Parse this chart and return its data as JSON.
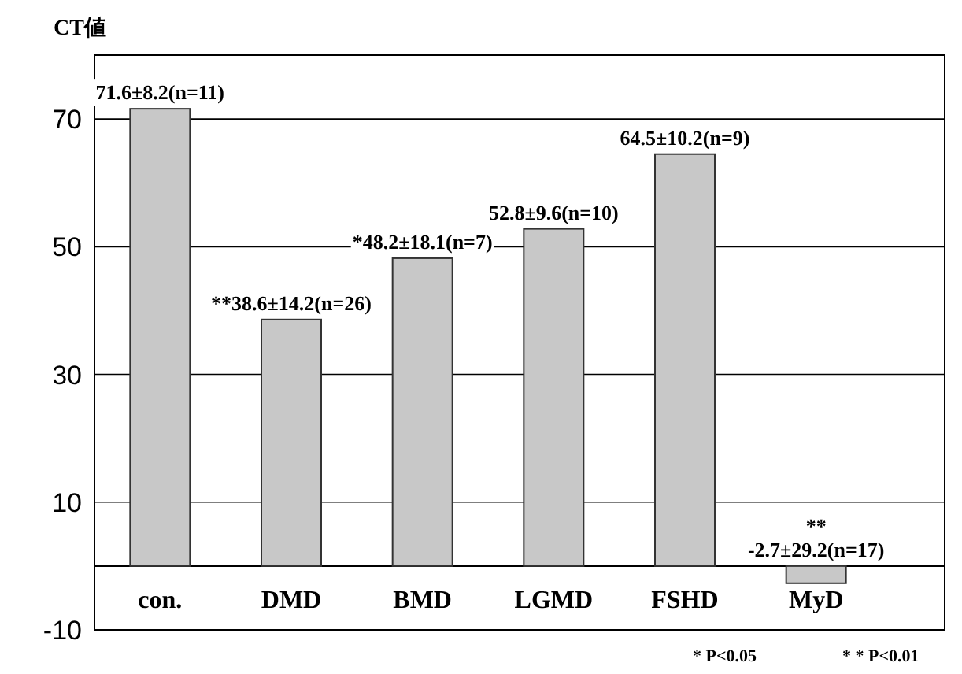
{
  "chart_data": {
    "type": "bar",
    "ylabel": "CT値",
    "categories": [
      "con.",
      "DMD",
      "BMD",
      "LGMD",
      "FSHD",
      "MyD"
    ],
    "values": [
      71.6,
      38.6,
      48.2,
      52.8,
      64.5,
      -2.7
    ],
    "value_labels": [
      "71.6±8.2(n=11)",
      "**38.6±14.2(n=26)",
      "*48.2±18.1(n=7)",
      "52.8±9.6(n=10)",
      "64.5±10.2(n=9)",
      "**\n-2.7±29.2(n=17)"
    ],
    "color": "#c8c8c8",
    "ylim": [
      -10,
      80
    ],
    "yticks": [
      -10,
      10,
      30,
      50,
      70
    ],
    "grid": "y",
    "annotations": [
      "* P<0.05",
      "* * P<0.01"
    ]
  }
}
